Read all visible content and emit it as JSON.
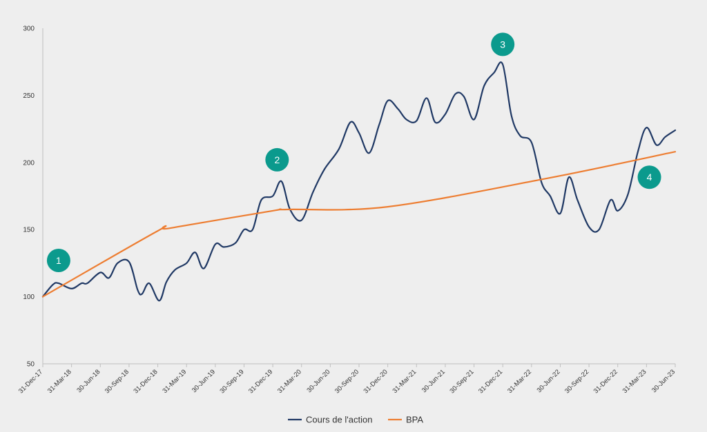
{
  "chart_data": {
    "type": "line",
    "title": "",
    "xlabel": "",
    "ylabel": "",
    "ylim": [
      50,
      300
    ],
    "yticks": [
      50,
      100,
      150,
      200,
      250,
      300
    ],
    "x_tick_labels": [
      "31-Dec-17",
      "31-Mar-18",
      "30-Jun-18",
      "30-Sep-18",
      "31-Dec-18",
      "31-Mar-19",
      "30-Jun-19",
      "30-Sep-19",
      "31-Dec-19",
      "31-Mar-20",
      "30-Jun-20",
      "30-Sep-20",
      "31-Dec-20",
      "31-Mar-21",
      "30-Jun-21",
      "30-Sep-21",
      "31-Dec-21",
      "31-Mar-22",
      "30-Jun-22",
      "30-Sep-22",
      "31-Dec-22",
      "31-Mar-23",
      "30-Jun-23"
    ],
    "grid": false,
    "legend_position": "bottom-center",
    "series": [
      {
        "name": "Cours de l'action",
        "color": "#1f3864",
        "points": [
          [
            0,
            100
          ],
          [
            0.35,
            109
          ],
          [
            0.55,
            110
          ],
          [
            1,
            106
          ],
          [
            1.35,
            110
          ],
          [
            1.55,
            110
          ],
          [
            2,
            118
          ],
          [
            2.3,
            114
          ],
          [
            2.6,
            125
          ],
          [
            3,
            126
          ],
          [
            3.3,
            105
          ],
          [
            3.45,
            102
          ],
          [
            3.7,
            110
          ],
          [
            4.05,
            97
          ],
          [
            4.3,
            111
          ],
          [
            4.6,
            120
          ],
          [
            5,
            125
          ],
          [
            5.3,
            133
          ],
          [
            5.6,
            121
          ],
          [
            6,
            139
          ],
          [
            6.3,
            137
          ],
          [
            6.7,
            140
          ],
          [
            7,
            150
          ],
          [
            7.3,
            150
          ],
          [
            7.6,
            172
          ],
          [
            8,
            175
          ],
          [
            8.3,
            186
          ],
          [
            8.6,
            165
          ],
          [
            9,
            157
          ],
          [
            9.4,
            178
          ],
          [
            9.8,
            195
          ],
          [
            10.3,
            210
          ],
          [
            10.7,
            230
          ],
          [
            11,
            222
          ],
          [
            11.35,
            207
          ],
          [
            11.7,
            228
          ],
          [
            12,
            246
          ],
          [
            12.35,
            240
          ],
          [
            12.65,
            232
          ],
          [
            13,
            231
          ],
          [
            13.35,
            248
          ],
          [
            13.65,
            230
          ],
          [
            14,
            236
          ],
          [
            14.35,
            251
          ],
          [
            14.65,
            249
          ],
          [
            15,
            232
          ],
          [
            15.35,
            257
          ],
          [
            15.7,
            267
          ],
          [
            16,
            273
          ],
          [
            16.3,
            235
          ],
          [
            16.6,
            220
          ],
          [
            17,
            215
          ],
          [
            17.35,
            185
          ],
          [
            17.65,
            175
          ],
          [
            18,
            162
          ],
          [
            18.3,
            189
          ],
          [
            18.6,
            172
          ],
          [
            19,
            152
          ],
          [
            19.35,
            150
          ],
          [
            19.75,
            172
          ],
          [
            20,
            164
          ],
          [
            20.35,
            176
          ],
          [
            20.7,
            208
          ],
          [
            21,
            226
          ],
          [
            21.35,
            213
          ],
          [
            21.65,
            219
          ],
          [
            22,
            224
          ]
        ]
      },
      {
        "name": "BPA",
        "color": "#ed7d31",
        "points": [
          [
            0,
            100
          ],
          [
            4,
            149
          ],
          [
            4.4,
            151
          ],
          [
            8,
            164
          ],
          [
            8.5,
            165
          ],
          [
            12,
            167
          ],
          [
            17.5,
            188
          ],
          [
            22,
            208
          ]
        ]
      }
    ],
    "annotations": [
      {
        "label": "1",
        "x": 0.55,
        "y": 127
      },
      {
        "label": "2",
        "x": 8.15,
        "y": 202
      },
      {
        "label": "3",
        "x": 16,
        "y": 288
      },
      {
        "label": "4",
        "x": 21.1,
        "y": 189
      }
    ],
    "marker_color": "#0b9a8d"
  }
}
